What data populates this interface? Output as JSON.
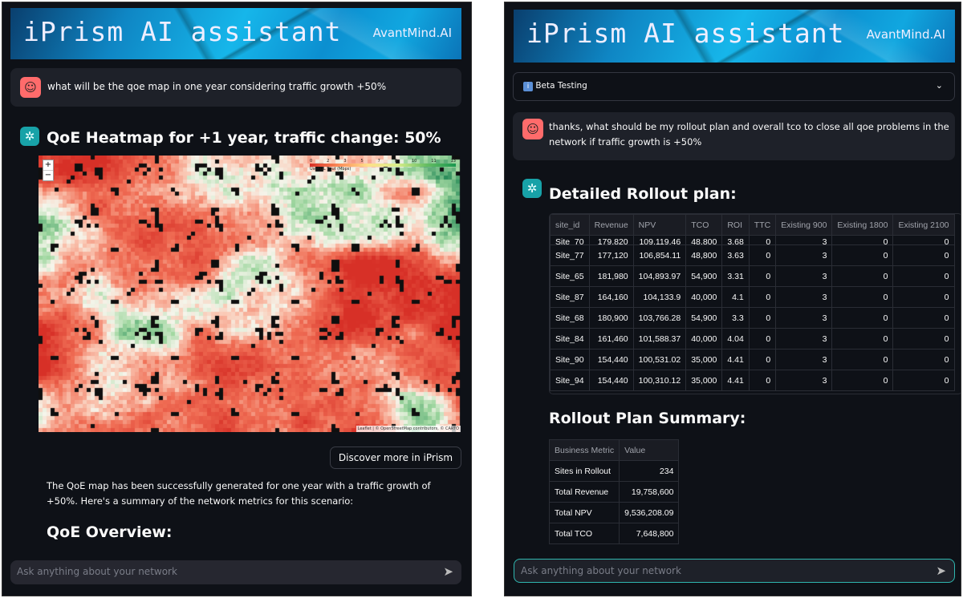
{
  "left": {
    "banner": {
      "title": "iPrism AI assistant",
      "brand": "AvantMind.AI"
    },
    "user_message": "what will be the qoe map in one year considering traffic growth +50%",
    "heading": "QoE Heatmap for +1 year, traffic change: 50%",
    "map": {
      "zoom_in": "+",
      "zoom_out": "−",
      "legend_ticks": [
        "0",
        "2",
        "3",
        "5",
        "7",
        "8",
        "10",
        "11",
        "13"
      ],
      "legend_title": "User DL Tput (Mbps)",
      "attribution": "Leaflet | © OpenStreetMap contributors, © CARTO",
      "colors": {
        "low": "#d73027",
        "mid": "#fdf6e3",
        "high": "#1a9850"
      }
    },
    "discover_button": "Discover more in iPrism",
    "summary_text": "The QoE map has been successfully generated for one year with a traffic growth of +50%. Here's a summary of the network metrics for this scenario:",
    "subheading": "QoE Overview:",
    "input_placeholder": "Ask anything about your network"
  },
  "right": {
    "banner": {
      "title": "iPrism AI assistant",
      "brand": "AvantMind.AI"
    },
    "expander": "Beta Testing",
    "user_message": "thanks, what should be my rollout plan and overall tco to close all qoe problems in the network if traffic growth is +50%",
    "heading": "Detailed Rollout plan:",
    "table": {
      "columns": [
        "site_id",
        "Revenue",
        "NPV",
        "TCO",
        "ROI",
        "TTC",
        "Existing 900",
        "Existing 1800",
        "Existing 2100"
      ],
      "rows": [
        [
          "Site_70",
          "179,820",
          "109,119.46",
          "48,800",
          "3.68",
          "0",
          "3",
          "0",
          "0"
        ],
        [
          "Site_77",
          "177,120",
          "106,854.11",
          "48,800",
          "3.63",
          "0",
          "3",
          "0",
          "0"
        ],
        [
          "Site_65",
          "181,980",
          "104,893.97",
          "54,900",
          "3.31",
          "0",
          "3",
          "0",
          "0"
        ],
        [
          "Site_87",
          "164,160",
          "104,133.9",
          "40,000",
          "4.1",
          "0",
          "3",
          "0",
          "0"
        ],
        [
          "Site_68",
          "180,900",
          "103,766.28",
          "54,900",
          "3.3",
          "0",
          "3",
          "0",
          "0"
        ],
        [
          "Site_84",
          "161,460",
          "101,588.37",
          "40,000",
          "4.04",
          "0",
          "3",
          "0",
          "0"
        ],
        [
          "Site_90",
          "154,440",
          "100,531.02",
          "35,000",
          "4.41",
          "0",
          "3",
          "0",
          "0"
        ],
        [
          "Site_94",
          "154,440",
          "100,310.12",
          "35,000",
          "4.41",
          "0",
          "3",
          "0",
          "0"
        ]
      ]
    },
    "summary_heading": "Rollout Plan Summary:",
    "summary": {
      "columns": [
        "Business Metric",
        "Value"
      ],
      "rows": [
        [
          "Sites in Rollout",
          "234"
        ],
        [
          "Total Revenue",
          "19,758,600"
        ],
        [
          "Total NPV",
          "9,536,208.09"
        ],
        [
          "Total TCO",
          "7,648,800"
        ]
      ]
    },
    "input_placeholder": "Ask anything about your network"
  }
}
